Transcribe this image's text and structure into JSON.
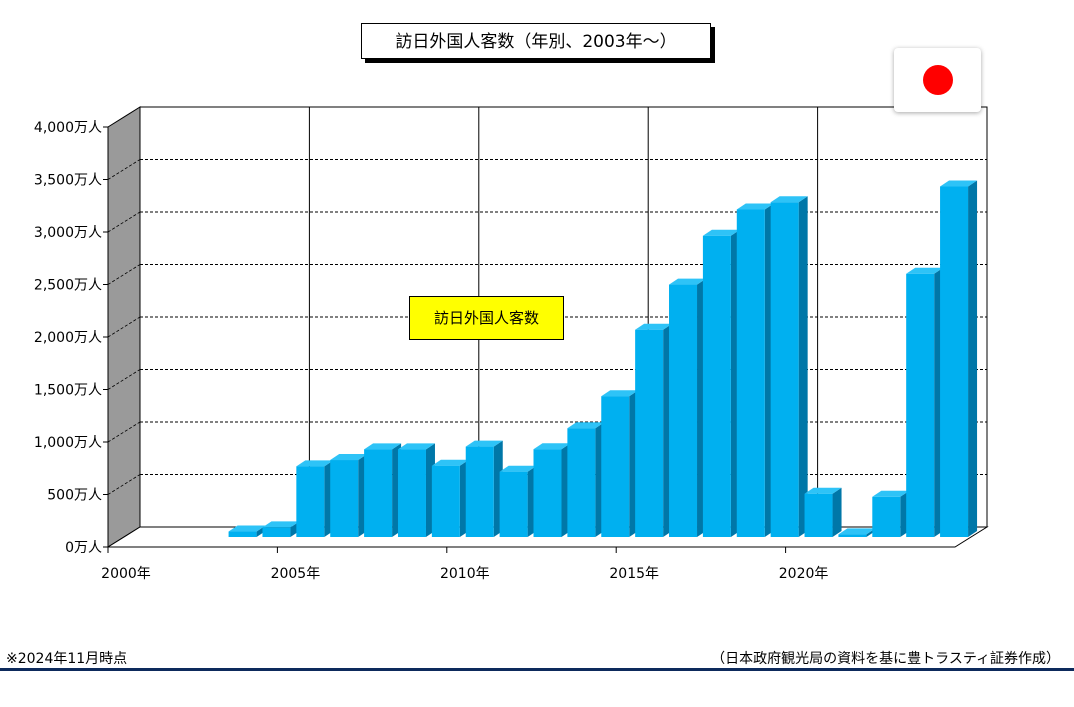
{
  "title": "訪日外国人客数（年別、2003年～）",
  "flag": {
    "icon": "japan-flag-icon",
    "background": "#ffffff",
    "circle_color": "#ff0000"
  },
  "notes": {
    "left": "※2024年11月時点",
    "right": "（日本政府観光局の資料を基に豊トラスティ証券作成）"
  },
  "colors": {
    "bar_front": "#00b0f0",
    "bar_top": "#2ec3f7",
    "bar_side": "#0077a8",
    "legend_bg": "#ffff00",
    "wall": "#9a9a9a",
    "rule": "#0d2a5c"
  },
  "chart_data": {
    "type": "bar",
    "title": "訪日外国人客数（年別、2003年～）",
    "series": [
      {
        "name": "訪日外国人客数",
        "x": [
          2003,
          2004,
          2005,
          2006,
          2007,
          2008,
          2009,
          2010,
          2011,
          2012,
          2013,
          2014,
          2015,
          2016,
          2017,
          2018,
          2019,
          2020,
          2021,
          2022,
          2023,
          2024
        ],
        "values": [
          52,
          92,
          673,
          733,
          835,
          835,
          679,
          861,
          622,
          836,
          1036,
          1341,
          1974,
          2404,
          2869,
          3119,
          3188,
          412,
          25,
          383,
          2507,
          3338
        ]
      }
    ],
    "xlim": [
      2000,
      2024
    ],
    "xticks": [
      "2000年",
      "2005年",
      "2010年",
      "2015年",
      "2020年"
    ],
    "ylim": [
      0,
      4000
    ],
    "yticks": [
      "0万人",
      "500万人",
      "1,000万人",
      "1,500万人",
      "2,000万人",
      "2,500万人",
      "3,000万人",
      "3,500万人",
      "4,000万人"
    ],
    "grid": true,
    "legend": "center"
  }
}
